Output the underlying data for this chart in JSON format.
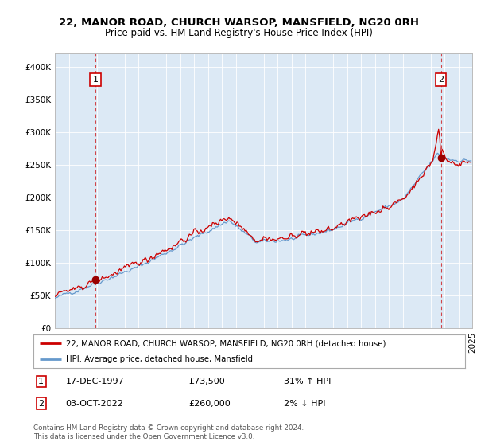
{
  "title": "22, MANOR ROAD, CHURCH WARSOP, MANSFIELD, NG20 0RH",
  "subtitle": "Price paid vs. HM Land Registry's House Price Index (HPI)",
  "ylim": [
    0,
    420000
  ],
  "yticks": [
    0,
    50000,
    100000,
    150000,
    200000,
    250000,
    300000,
    350000,
    400000
  ],
  "bg_color": "#dce9f5",
  "legend_line1": "22, MANOR ROAD, CHURCH WARSOP, MANSFIELD, NG20 0RH (detached house)",
  "legend_line2": "HPI: Average price, detached house, Mansfield",
  "sale1_date": "17-DEC-1997",
  "sale1_price": 73500,
  "sale1_pct": "31% ↑ HPI",
  "sale2_date": "03-OCT-2022",
  "sale2_price": 260000,
  "sale2_pct": "2% ↓ HPI",
  "footer": "Contains HM Land Registry data © Crown copyright and database right 2024.\nThis data is licensed under the Open Government Licence v3.0.",
  "red_color": "#cc0000",
  "blue_color": "#6699cc",
  "t_sale1": 1997.917,
  "t_sale2": 2022.75
}
